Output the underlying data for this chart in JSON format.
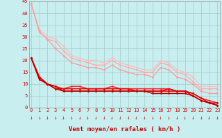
{
  "xlabel": "Vent moyen/en rafales ( km/h )",
  "background_color": "#c8eef0",
  "grid_color": "#a0ccc8",
  "xlim": [
    -0.3,
    23.3
  ],
  "ylim": [
    0,
    45
  ],
  "yticks": [
    0,
    5,
    10,
    15,
    20,
    25,
    30,
    35,
    40,
    45
  ],
  "xticks": [
    0,
    1,
    2,
    3,
    4,
    5,
    6,
    7,
    8,
    9,
    10,
    11,
    12,
    13,
    14,
    15,
    16,
    17,
    18,
    19,
    20,
    21,
    22,
    23
  ],
  "series": [
    {
      "x": [
        0,
        1,
        2,
        3,
        4,
        5,
        6,
        7,
        8,
        9,
        10,
        11,
        12,
        13,
        14,
        15,
        16,
        17,
        18,
        19,
        20,
        21,
        22,
        23
      ],
      "y": [
        44,
        33,
        30,
        29,
        26,
        22,
        21,
        20,
        20,
        19,
        21,
        19,
        18,
        17,
        16,
        16,
        20,
        19,
        16,
        15,
        13,
        9,
        9,
        9
      ],
      "color": "#ffbbbb",
      "linewidth": 0.9,
      "marker": "D",
      "markersize": 1.8
    },
    {
      "x": [
        0,
        1,
        2,
        3,
        4,
        5,
        6,
        7,
        8,
        9,
        10,
        11,
        12,
        13,
        14,
        15,
        16,
        17,
        18,
        19,
        20,
        21,
        22,
        23
      ],
      "y": [
        44,
        32,
        29,
        28,
        24,
        21,
        20,
        19,
        18,
        18,
        20,
        18,
        17,
        16,
        15,
        15,
        19,
        18,
        15,
        14,
        11,
        8,
        8,
        8
      ],
      "color": "#ffaaaa",
      "linewidth": 0.9,
      "marker": "D",
      "markersize": 1.8
    },
    {
      "x": [
        0,
        1,
        2,
        3,
        4,
        5,
        6,
        7,
        8,
        9,
        10,
        11,
        12,
        13,
        14,
        15,
        16,
        17,
        18,
        19,
        20,
        21,
        22,
        23
      ],
      "y": [
        44,
        32,
        29,
        25,
        22,
        19,
        18,
        17,
        17,
        16,
        18,
        16,
        15,
        14,
        14,
        13,
        17,
        16,
        13,
        12,
        10,
        7,
        6,
        6
      ],
      "color": "#ff9999",
      "linewidth": 0.9,
      "marker": "D",
      "markersize": 1.8
    },
    {
      "x": [
        0,
        1,
        2,
        3,
        4,
        5,
        6,
        7,
        8,
        9,
        10,
        11,
        12,
        13,
        14,
        15,
        16,
        17,
        18,
        19,
        20,
        21,
        22,
        23
      ],
      "y": [
        21,
        13,
        10,
        9,
        8,
        9,
        9,
        8,
        8,
        8,
        9,
        8,
        8,
        8,
        8,
        8,
        8,
        8,
        7,
        7,
        6,
        4,
        3,
        2
      ],
      "color": "#ff2222",
      "linewidth": 1.1,
      "marker": "D",
      "markersize": 1.8
    },
    {
      "x": [
        0,
        1,
        2,
        3,
        4,
        5,
        6,
        7,
        8,
        9,
        10,
        11,
        12,
        13,
        14,
        15,
        16,
        17,
        18,
        19,
        20,
        21,
        22,
        23
      ],
      "y": [
        21,
        13,
        10,
        8,
        8,
        8,
        8,
        8,
        8,
        8,
        8,
        8,
        8,
        7,
        7,
        7,
        7,
        8,
        7,
        7,
        6,
        4,
        2,
        2
      ],
      "color": "#ee0000",
      "linewidth": 1.1,
      "marker": "D",
      "markersize": 1.8
    },
    {
      "x": [
        0,
        1,
        2,
        3,
        4,
        5,
        6,
        7,
        8,
        9,
        10,
        11,
        12,
        13,
        14,
        15,
        16,
        17,
        18,
        19,
        20,
        21,
        22,
        23
      ],
      "y": [
        21,
        12,
        10,
        9,
        7,
        7,
        7,
        7,
        7,
        7,
        7,
        7,
        7,
        7,
        7,
        7,
        7,
        7,
        7,
        7,
        5,
        3,
        2,
        1
      ],
      "color": "#cc0000",
      "linewidth": 1.1,
      "marker": "D",
      "markersize": 1.8
    },
    {
      "x": [
        0,
        1,
        2,
        3,
        4,
        5,
        6,
        7,
        8,
        9,
        10,
        11,
        12,
        13,
        14,
        15,
        16,
        17,
        18,
        19,
        20,
        21,
        22,
        23
      ],
      "y": [
        21,
        12,
        10,
        8,
        7,
        7,
        7,
        7,
        7,
        7,
        7,
        7,
        7,
        7,
        7,
        6,
        6,
        6,
        6,
        6,
        5,
        3,
        2,
        1
      ],
      "color": "#bb0000",
      "linewidth": 1.1,
      "marker": "D",
      "markersize": 1.8
    }
  ],
  "arrow_color": "#cc0000",
  "tick_fontsize": 5.0,
  "label_fontsize": 6.5
}
